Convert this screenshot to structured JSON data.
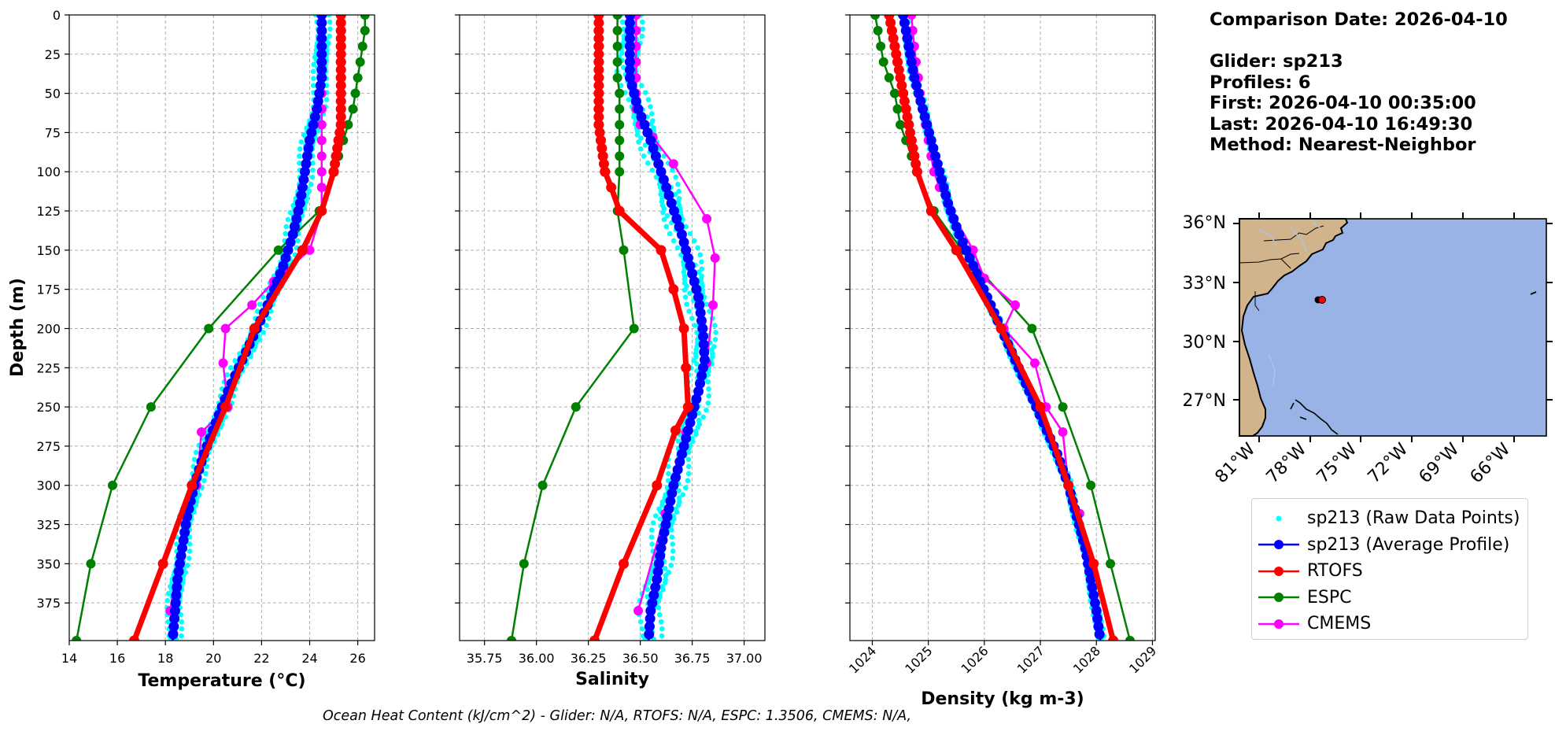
{
  "info": {
    "comparison_date": "Comparison Date: 2026-04-10",
    "glider": "Glider: sp213",
    "profiles": "Profiles: 6",
    "first": "First: 2026-04-10 00:35:00",
    "last": "Last: 2026-04-10 16:49:30",
    "method": "Method: Nearest-Neighbor"
  },
  "footer": "Ocean Heat Content (kJ/cm^2) - Glider: N/A,  RTOFS: N/A,  ESPC: 1.3506,  CMEMS: N/A,",
  "legend": [
    {
      "key": "raw",
      "label": "sp213 (Raw Data Points)",
      "color": "#00ffff",
      "style": "dot"
    },
    {
      "key": "avg",
      "label": "sp213 (Average Profile)",
      "color": "#0000ff",
      "style": "line-marker"
    },
    {
      "key": "rtofs",
      "label": "RTOFS",
      "color": "#ff0000",
      "style": "line-marker"
    },
    {
      "key": "espc",
      "label": "ESPC",
      "color": "#008000",
      "style": "line-marker"
    },
    {
      "key": "cmems",
      "label": "CMEMS",
      "color": "#ff00ff",
      "style": "line-marker"
    }
  ],
  "colors": {
    "raw": "#00ffff",
    "avg": "#0000ff",
    "rtofs": "#ff0000",
    "espc": "#008000",
    "cmems": "#ff00ff",
    "land": "#d2b48c",
    "ocean": "#99b3e6",
    "river": "#a9c5e0"
  },
  "chart_data": [
    {
      "type": "line",
      "name": "temperature",
      "xlabel": "Temperature (°C)",
      "ylabel": "Depth (m)",
      "xlim": [
        14.0,
        26.7
      ],
      "ylim": [
        399,
        0
      ],
      "xticks": [
        14,
        16,
        18,
        20,
        22,
        24,
        26
      ],
      "yticks": [
        0,
        25,
        50,
        75,
        100,
        125,
        150,
        175,
        200,
        225,
        250,
        275,
        300,
        325,
        350,
        375
      ],
      "grid": true,
      "series": [
        {
          "name": "sp213 (Average Profile)",
          "depth": [
            0,
            20,
            40,
            60,
            80,
            100,
            120,
            140,
            160,
            180,
            200,
            220,
            240,
            260,
            280,
            300,
            320,
            340,
            360,
            380,
            399
          ],
          "values": [
            24.5,
            24.5,
            24.5,
            24.3,
            24.0,
            23.8,
            23.6,
            23.3,
            22.9,
            22.4,
            21.8,
            21.2,
            20.6,
            20.1,
            19.6,
            19.2,
            18.9,
            18.7,
            18.5,
            18.4,
            18.3
          ]
        },
        {
          "name": "RTOFS",
          "depth": [
            0,
            10,
            20,
            30,
            40,
            50,
            60,
            70,
            80,
            90,
            100,
            125,
            150,
            200,
            250,
            300,
            350,
            399
          ],
          "values": [
            25.3,
            25.3,
            25.3,
            25.3,
            25.3,
            25.3,
            25.3,
            25.3,
            25.2,
            25.1,
            25.0,
            24.5,
            23.7,
            21.7,
            20.5,
            19.1,
            17.9,
            16.7
          ]
        },
        {
          "name": "ESPC",
          "depth": [
            0,
            10,
            20,
            30,
            40,
            50,
            60,
            70,
            80,
            90,
            100,
            125,
            150,
            200,
            250,
            300,
            350,
            399
          ],
          "values": [
            26.3,
            26.3,
            26.2,
            26.1,
            26.0,
            25.9,
            25.8,
            25.6,
            25.4,
            25.2,
            25.0,
            24.4,
            22.7,
            19.8,
            17.4,
            15.8,
            14.9,
            14.3
          ]
        },
        {
          "name": "CMEMS",
          "depth": [
            0,
            10,
            20,
            30,
            40,
            50,
            60,
            70,
            80,
            90,
            100,
            110,
            125,
            150,
            170,
            185,
            200,
            222,
            250,
            266,
            300,
            318,
            380
          ],
          "values": [
            24.5,
            24.5,
            24.5,
            24.5,
            24.5,
            24.5,
            24.5,
            24.5,
            24.5,
            24.5,
            24.5,
            24.5,
            24.5,
            24.0,
            22.5,
            21.6,
            20.5,
            20.4,
            20.6,
            19.5,
            19.3,
            18.8,
            18.2
          ]
        }
      ]
    },
    {
      "type": "line",
      "name": "salinity",
      "xlabel": "Salinity",
      "ylabel": "",
      "xlim": [
        35.63,
        37.1
      ],
      "ylim": [
        399,
        0
      ],
      "xticks": [
        35.75,
        36.0,
        36.25,
        36.5,
        36.75,
        37.0
      ],
      "grid": true,
      "series": [
        {
          "name": "sp213 (Average Profile)",
          "depth": [
            0,
            20,
            40,
            60,
            80,
            100,
            120,
            140,
            160,
            180,
            200,
            220,
            240,
            260,
            280,
            300,
            320,
            340,
            360,
            380,
            399
          ],
          "values": [
            36.45,
            36.45,
            36.45,
            36.49,
            36.55,
            36.6,
            36.65,
            36.7,
            36.74,
            36.78,
            36.8,
            36.81,
            36.78,
            36.74,
            36.7,
            36.66,
            36.63,
            36.6,
            36.58,
            36.55,
            36.54
          ]
        },
        {
          "name": "RTOFS",
          "depth": [
            0,
            10,
            20,
            30,
            40,
            50,
            60,
            70,
            80,
            90,
            100,
            110,
            125,
            150,
            175,
            200,
            225,
            250,
            265,
            300,
            350,
            399
          ],
          "values": [
            36.3,
            36.3,
            36.3,
            36.3,
            36.3,
            36.3,
            36.3,
            36.3,
            36.31,
            36.32,
            36.33,
            36.36,
            36.4,
            36.6,
            36.66,
            36.71,
            36.72,
            36.73,
            36.67,
            36.58,
            36.42,
            36.28
          ]
        },
        {
          "name": "ESPC",
          "depth": [
            0,
            10,
            20,
            30,
            40,
            50,
            60,
            70,
            80,
            90,
            100,
            125,
            150,
            200,
            250,
            300,
            350,
            399
          ],
          "values": [
            36.39,
            36.39,
            36.39,
            36.39,
            36.39,
            36.4,
            36.4,
            36.4,
            36.4,
            36.4,
            36.4,
            36.39,
            36.42,
            36.47,
            36.19,
            36.03,
            35.94,
            35.88
          ]
        },
        {
          "name": "CMEMS",
          "depth": [
            0,
            10,
            20,
            30,
            40,
            50,
            60,
            70,
            78,
            95,
            130,
            155,
            185,
            222,
            266,
            318,
            380
          ],
          "values": [
            36.48,
            36.48,
            36.48,
            36.48,
            36.48,
            36.48,
            36.48,
            36.5,
            36.56,
            36.66,
            36.82,
            36.86,
            36.85,
            36.82,
            36.72,
            36.62,
            36.49
          ]
        }
      ]
    },
    {
      "type": "line",
      "name": "density",
      "xlabel": "Density (kg m-3)",
      "ylabel": "",
      "xlim": [
        1023.6,
        1029.05
      ],
      "ylim": [
        399,
        0
      ],
      "xticks": [
        1024,
        1025,
        1026,
        1027,
        1028,
        1029
      ],
      "grid": true,
      "series": [
        {
          "name": "sp213 (Average Profile)",
          "depth": [
            0,
            20,
            40,
            60,
            80,
            100,
            120,
            140,
            160,
            180,
            200,
            220,
            240,
            260,
            280,
            300,
            320,
            340,
            360,
            380,
            399
          ],
          "values": [
            1024.55,
            1024.65,
            1024.75,
            1024.9,
            1025.05,
            1025.2,
            1025.35,
            1025.55,
            1025.8,
            1026.05,
            1026.3,
            1026.55,
            1026.8,
            1027.05,
            1027.3,
            1027.5,
            1027.65,
            1027.8,
            1027.9,
            1028.0,
            1028.07
          ]
        },
        {
          "name": "RTOFS",
          "depth": [
            0,
            10,
            20,
            30,
            40,
            50,
            60,
            70,
            80,
            90,
            100,
            125,
            150,
            200,
            250,
            300,
            350,
            399
          ],
          "values": [
            1024.3,
            1024.35,
            1024.4,
            1024.45,
            1024.5,
            1024.55,
            1024.6,
            1024.65,
            1024.7,
            1024.75,
            1024.8,
            1025.05,
            1025.5,
            1026.3,
            1027.0,
            1027.5,
            1027.95,
            1028.3
          ]
        },
        {
          "name": "ESPC",
          "depth": [
            0,
            10,
            20,
            30,
            40,
            50,
            60,
            70,
            80,
            90,
            100,
            125,
            150,
            200,
            250,
            300,
            350,
            399
          ],
          "values": [
            1024.05,
            1024.1,
            1024.15,
            1024.2,
            1024.3,
            1024.4,
            1024.45,
            1024.5,
            1024.6,
            1024.7,
            1024.8,
            1025.1,
            1025.6,
            1026.85,
            1027.4,
            1027.9,
            1028.25,
            1028.6
          ]
        },
        {
          "name": "CMEMS",
          "depth": [
            0,
            10,
            20,
            30,
            40,
            50,
            60,
            70,
            80,
            90,
            100,
            110,
            125,
            150,
            168,
            185,
            200,
            222,
            250,
            266,
            300,
            318,
            380
          ],
          "values": [
            1024.7,
            1024.72,
            1024.75,
            1024.78,
            1024.82,
            1024.85,
            1024.9,
            1024.95,
            1025.0,
            1025.05,
            1025.1,
            1025.2,
            1025.4,
            1025.8,
            1026.0,
            1026.55,
            1026.35,
            1026.9,
            1027.1,
            1027.4,
            1027.5,
            1027.7,
            1028.0
          ]
        }
      ]
    }
  ],
  "map": {
    "lat_ticks": [
      "36°N",
      "33°N",
      "30°N",
      "27°N"
    ],
    "lon_ticks": [
      "81°W",
      "78°W",
      "75°W",
      "72°W",
      "69°W",
      "66°W"
    ]
  }
}
